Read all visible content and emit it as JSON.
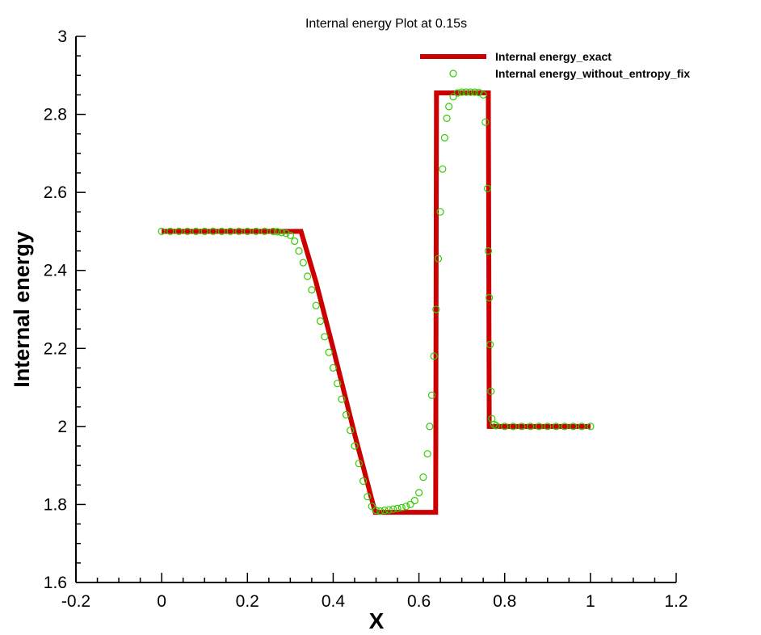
{
  "chart_data": {
    "type": "line",
    "title": "Internal energy Plot at 0.15s",
    "xlabel": "X",
    "ylabel": "Internal energy",
    "xlim": [
      -0.2,
      1.2
    ],
    "ylim": [
      1.6,
      3.0
    ],
    "xticks": [
      "-0.2",
      "0",
      "0.2",
      "0.4",
      "0.6",
      "0.8",
      "1",
      "1.2"
    ],
    "yticks": [
      "1.6",
      "1.8",
      "2",
      "2.2",
      "2.4",
      "2.6",
      "2.8",
      "3"
    ],
    "legend_position": "top-right",
    "series": [
      {
        "name": "Internal energy_exact",
        "style": "line",
        "color": "#cc0000",
        "x": [
          0.0,
          0.315,
          0.325,
          0.36,
          0.4,
          0.45,
          0.498,
          0.502,
          0.55,
          0.6,
          0.639,
          0.641,
          0.7,
          0.762,
          0.764,
          1.0
        ],
        "y": [
          2.5,
          2.5,
          2.5,
          2.37,
          2.2,
          1.98,
          1.78,
          1.78,
          1.78,
          1.78,
          1.78,
          2.855,
          2.855,
          2.855,
          2.0,
          2.0
        ]
      },
      {
        "name": "Internal energy_without_entropy_fix",
        "style": "markers",
        "marker": "open-circle",
        "color": "#33cc00",
        "x": [
          0.0,
          0.02,
          0.04,
          0.06,
          0.08,
          0.1,
          0.12,
          0.14,
          0.16,
          0.18,
          0.2,
          0.22,
          0.24,
          0.26,
          0.27,
          0.28,
          0.29,
          0.3,
          0.31,
          0.32,
          0.33,
          0.34,
          0.35,
          0.36,
          0.37,
          0.38,
          0.39,
          0.4,
          0.41,
          0.42,
          0.43,
          0.44,
          0.45,
          0.46,
          0.47,
          0.48,
          0.49,
          0.5,
          0.51,
          0.52,
          0.53,
          0.54,
          0.55,
          0.56,
          0.57,
          0.58,
          0.59,
          0.6,
          0.61,
          0.62,
          0.625,
          0.63,
          0.635,
          0.64,
          0.645,
          0.65,
          0.655,
          0.66,
          0.665,
          0.67,
          0.68,
          0.69,
          0.7,
          0.71,
          0.72,
          0.73,
          0.74,
          0.75,
          0.755,
          0.76,
          0.762,
          0.764,
          0.766,
          0.768,
          0.77,
          0.775,
          0.78,
          0.8,
          0.82,
          0.84,
          0.86,
          0.88,
          0.9,
          0.92,
          0.94,
          0.96,
          0.98,
          1.0
        ],
        "y": [
          2.5,
          2.5,
          2.5,
          2.5,
          2.5,
          2.5,
          2.5,
          2.5,
          2.5,
          2.5,
          2.5,
          2.5,
          2.5,
          2.5,
          2.499,
          2.497,
          2.495,
          2.49,
          2.475,
          2.45,
          2.42,
          2.385,
          2.35,
          2.31,
          2.27,
          2.23,
          2.19,
          2.15,
          2.11,
          2.07,
          2.03,
          1.99,
          1.95,
          1.905,
          1.86,
          1.82,
          1.795,
          1.785,
          1.783,
          1.785,
          1.786,
          1.788,
          1.79,
          1.792,
          1.795,
          1.8,
          1.81,
          1.83,
          1.87,
          1.93,
          2.0,
          2.08,
          2.18,
          2.3,
          2.43,
          2.55,
          2.66,
          2.74,
          2.79,
          2.82,
          2.845,
          2.855,
          2.857,
          2.857,
          2.857,
          2.857,
          2.856,
          2.85,
          2.78,
          2.61,
          2.45,
          2.33,
          2.21,
          2.09,
          2.02,
          2.005,
          2.002,
          2.0,
          2.0,
          2.0,
          2.0,
          2.0,
          2.0,
          2.0,
          2.0,
          2.0,
          2.0,
          2.0
        ]
      }
    ]
  }
}
